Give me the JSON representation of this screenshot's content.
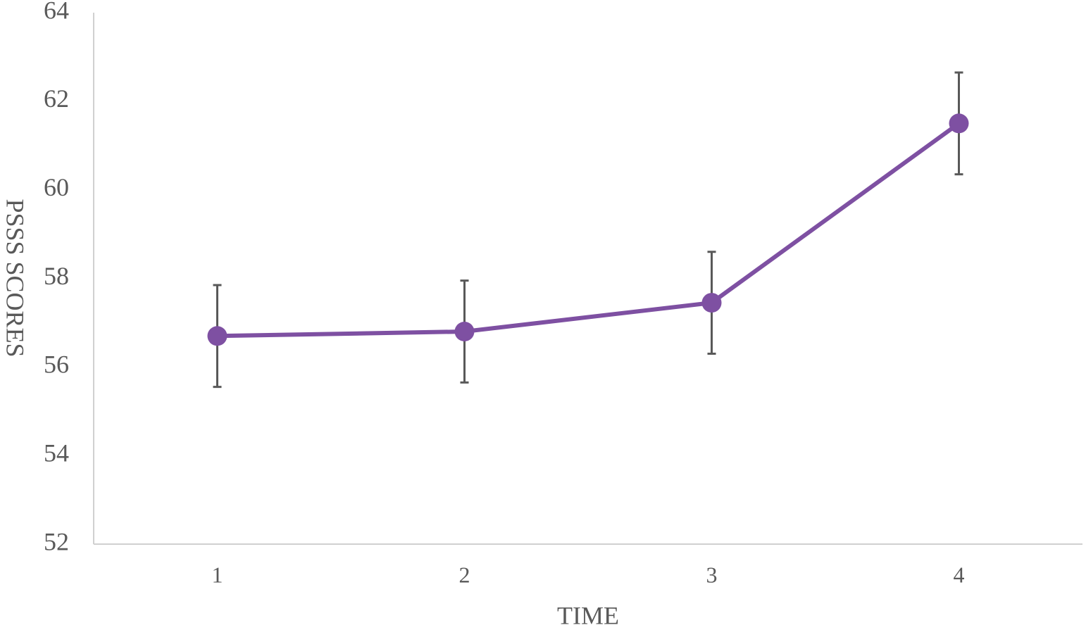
{
  "chart_data": {
    "type": "line",
    "x_label": "TIME",
    "y_label": "PSSS SCORES",
    "categories": [
      "1",
      "2",
      "3",
      "4"
    ],
    "series": [
      {
        "color": "#7e50a2",
        "values": [
          56.7,
          56.8,
          57.45,
          61.5
        ],
        "errors": [
          1.15,
          1.15,
          1.15,
          1.15
        ]
      }
    ],
    "error_color": "#595959",
    "ylim": [
      52,
      64
    ],
    "yticks": [
      52,
      54,
      56,
      58,
      60,
      62,
      64
    ],
    "grid": false
  }
}
